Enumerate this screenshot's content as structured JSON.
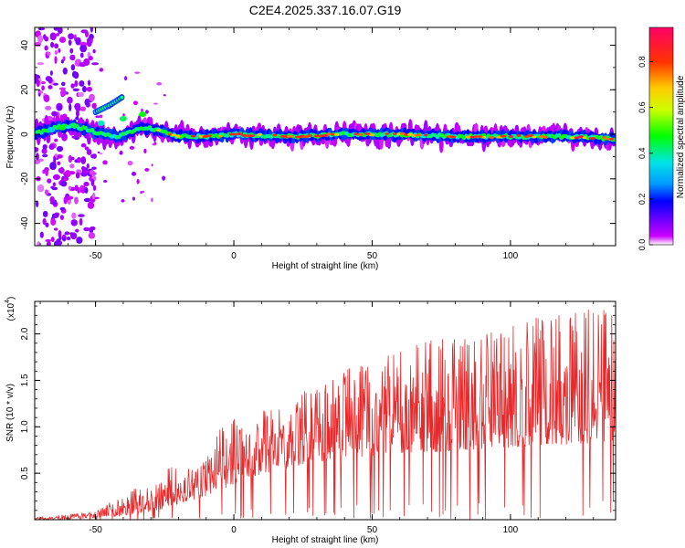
{
  "figure_title": "C2E4.2025.337.16.07.G19",
  "colors": {
    "axis": "#000000",
    "snr_line": "#e8282a",
    "colormap": [
      "#ffffff",
      "#cc00ff",
      "#3300ff",
      "#0099ff",
      "#00e5e5",
      "#00ff00",
      "#ccff00",
      "#ffcc00",
      "#ff3300",
      "#ff0066"
    ]
  },
  "chart_data": [
    {
      "type": "heatmap",
      "title": "",
      "xlabel": "Height of straight line (km)",
      "ylabel": "Frequency (Hz)",
      "xlim": [
        -72,
        138
      ],
      "ylim": [
        -50,
        48
      ],
      "x_ticks": [
        -50,
        0,
        50,
        100
      ],
      "x_tick_labels": [
        "-50",
        "0",
        "50",
        "100"
      ],
      "y_ticks": [
        -40,
        -20,
        0,
        20,
        40
      ],
      "y_tick_labels": [
        "-40",
        "-20",
        "0",
        "20",
        "40"
      ],
      "grid": false,
      "ridge": {
        "description_points": [
          {
            "x": -72,
            "y": 0
          },
          {
            "x": -65,
            "y": 3
          },
          {
            "x": -58,
            "y": 4
          },
          {
            "x": -50,
            "y": 1
          },
          {
            "x": -42,
            "y": -1
          },
          {
            "x": -33,
            "y": 3
          },
          {
            "x": -27,
            "y": 2
          },
          {
            "x": -20,
            "y": -1
          },
          {
            "x": -10,
            "y": -1
          },
          {
            "x": 0,
            "y": 0
          },
          {
            "x": 20,
            "y": -1
          },
          {
            "x": 40,
            "y": 0
          },
          {
            "x": 60,
            "y": 0
          },
          {
            "x": 80,
            "y": -1
          },
          {
            "x": 100,
            "y": -1
          },
          {
            "x": 120,
            "y": -1
          },
          {
            "x": 138,
            "y": -2
          }
        ],
        "secondary_branch": [
          {
            "x": -50,
            "y": 10
          },
          {
            "x": -45,
            "y": 13
          },
          {
            "x": -40,
            "y": 17
          }
        ]
      },
      "colorbar": {
        "label": "Normalized spectral amplitude",
        "range": [
          0,
          0.95
        ],
        "ticks": [
          0.0,
          0.2,
          0.4,
          0.6,
          0.8
        ],
        "tick_labels": [
          "0.0",
          "0.2",
          "0.4",
          "0.6",
          "0.8"
        ]
      }
    },
    {
      "type": "line",
      "title": "",
      "xlabel": "Height of straight line (km)",
      "ylabel": "SNR (10 * v/v)",
      "y_scale_label": "(x10",
      "y_scale_exponent": "4",
      "xlim": [
        -72,
        138
      ],
      "ylim": [
        0,
        23500
      ],
      "x_ticks": [
        -50,
        0,
        50,
        100
      ],
      "x_tick_labels": [
        "-50",
        "0",
        "50",
        "100"
      ],
      "y_ticks": [
        5000,
        10000,
        15000,
        20000
      ],
      "y_tick_labels": [
        "0.5",
        "1.0",
        "1.5",
        "2.0"
      ],
      "grid": false,
      "envelope": {
        "x": [
          -72,
          -60,
          -50,
          -45,
          -40,
          -35,
          -30,
          -25,
          -23,
          -20,
          -15,
          -10,
          -5,
          0,
          5,
          10,
          15,
          20,
          25,
          30,
          35,
          40,
          50,
          60,
          70,
          80,
          90,
          100,
          110,
          120,
          130,
          138
        ],
        "peak": [
          300,
          600,
          900,
          1800,
          2600,
          3500,
          3800,
          4200,
          8200,
          5000,
          5800,
          6400,
          9800,
          11000,
          9000,
          12000,
          12000,
          11500,
          13800,
          14200,
          15500,
          16500,
          17200,
          18200,
          19200,
          19800,
          20200,
          20700,
          22500,
          23000,
          23200,
          22400
        ],
        "base": [
          0,
          100,
          200,
          300,
          400,
          700,
          900,
          1200,
          1300,
          1700,
          2100,
          2600,
          3200,
          3800,
          4300,
          4900,
          5300,
          5600,
          5900,
          6200,
          6400,
          6600,
          6900,
          7100,
          7300,
          7400,
          7600,
          7800,
          8000,
          8100,
          8300,
          8500
        ]
      }
    }
  ]
}
